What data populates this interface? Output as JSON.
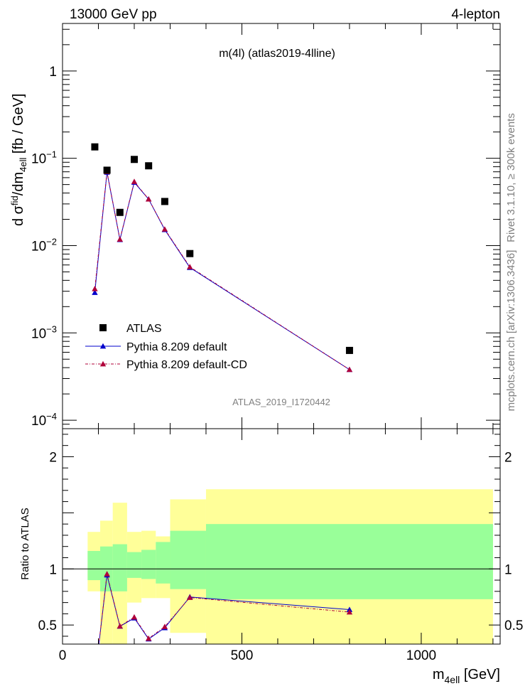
{
  "header": {
    "left_label": "13000 GeV pp",
    "right_label": "4-lepton"
  },
  "side_labels": {
    "rivet": "Rivet 3.1.10, ≥ 300k events",
    "mcplots": "mcplots.cern.ch [arXiv:1306.3436]"
  },
  "chart_data": [
    {
      "type": "scatter",
      "title": "m(4l) (atlas2019-4lline)",
      "watermark": "ATLAS_2019_I1720442",
      "ylabel_main": "d σ",
      "ylabel_sup": "fid",
      "ylabel_mid": "/dm",
      "ylabel_sub": "4ell",
      "ylabel_units": " [fb / GeV]",
      "yscale": "log",
      "xlim": [
        0,
        1220
      ],
      "ylim": [
        8e-05,
        3.5
      ],
      "yticks": [
        0.0001,
        0.001,
        0.01,
        0.1,
        1
      ],
      "ytick_labels": [
        {
          "base": "10",
          "exp": "−4"
        },
        {
          "base": "10",
          "exp": "−3"
        },
        {
          "base": "10",
          "exp": "−2"
        },
        {
          "base": "10",
          "exp": "−1"
        },
        {
          "base": "1",
          "exp": ""
        }
      ],
      "legend": [
        {
          "label": "ATLAS",
          "color": "#000000",
          "marker": "square"
        },
        {
          "label": "Pythia 8.209 default",
          "color": "#0000cc",
          "marker": "triangle"
        },
        {
          "label": "Pythia 8.209 default-CD",
          "color": "#b0003a",
          "marker": "triangle",
          "dashed": true
        }
      ],
      "series": [
        {
          "name": "ATLAS",
          "color": "#000000",
          "x": [
            90,
            124,
            160,
            200,
            240,
            285,
            355,
            800
          ],
          "y": [
            0.135,
            0.073,
            0.024,
            0.097,
            0.082,
            0.032,
            0.0081,
            0.00063
          ]
        },
        {
          "name": "Pythia 8.209 default",
          "color": "#0000cc",
          "x": [
            90,
            124,
            160,
            200,
            240,
            285,
            355,
            800
          ],
          "y": [
            0.0029,
            0.069,
            0.0117,
            0.053,
            0.034,
            0.0152,
            0.0056,
            0.00038
          ]
        },
        {
          "name": "Pythia 8.209 default-CD",
          "color": "#b0003a",
          "x": [
            90,
            124,
            160,
            200,
            240,
            285,
            355,
            800
          ],
          "y": [
            0.0032,
            0.07,
            0.0118,
            0.054,
            0.034,
            0.0154,
            0.0057,
            0.00038
          ]
        }
      ]
    },
    {
      "type": "area",
      "ylabel": "Ratio to ATLAS",
      "xlabel_main": "m",
      "xlabel_sub": "4ell",
      "xlabel_units": " [GeV]",
      "xlim": [
        0,
        1220
      ],
      "ylim": [
        0.33,
        2.25
      ],
      "xticks": [
        0,
        500,
        1000
      ],
      "xtick_labels": [
        "0",
        "500",
        "1000"
      ],
      "yticks": [
        0.5,
        1,
        2
      ],
      "ytick_labels": [
        "0.5",
        "1",
        "2"
      ],
      "bins": [
        {
          "lo": 70,
          "hi": 105,
          "yel": [
            0.8,
            1.33
          ],
          "grn": [
            0.9,
            1.16
          ]
        },
        {
          "lo": 105,
          "hi": 140,
          "yel": [
            0.2,
            1.43
          ],
          "grn": [
            0.8,
            1.2
          ]
        },
        {
          "lo": 140,
          "hi": 180,
          "yel": [
            0.2,
            1.59
          ],
          "grn": [
            0.8,
            1.22
          ]
        },
        {
          "lo": 180,
          "hi": 220,
          "yel": [
            0.7,
            1.33
          ],
          "grn": [
            0.92,
            1.15
          ]
        },
        {
          "lo": 220,
          "hi": 260,
          "yel": [
            0.74,
            1.34
          ],
          "grn": [
            0.91,
            1.17
          ]
        },
        {
          "lo": 260,
          "hi": 300,
          "yel": [
            0.74,
            1.29
          ],
          "grn": [
            0.87,
            1.24
          ]
        },
        {
          "lo": 300,
          "hi": 400,
          "yel": [
            0.43,
            1.62
          ],
          "grn": [
            0.82,
            1.34
          ]
        },
        {
          "lo": 400,
          "hi": 1200,
          "yel": [
            0.1,
            1.71
          ],
          "grn": [
            0.73,
            1.4
          ]
        }
      ],
      "series": [
        {
          "name": "Pythia 8.209 default",
          "color": "#0000cc",
          "x": [
            90,
            124,
            160,
            200,
            240,
            285,
            355,
            800
          ],
          "y": [
            0.02,
            0.945,
            0.488,
            0.562,
            0.375,
            0.475,
            0.75,
            0.637
          ]
        },
        {
          "name": "Pythia 8.209 default-CD",
          "color": "#b0003a",
          "x": [
            90,
            124,
            160,
            200,
            240,
            285,
            355,
            800
          ],
          "y": [
            0.02,
            0.955,
            0.49,
            0.57,
            0.38,
            0.485,
            0.745,
            0.615
          ]
        }
      ]
    }
  ]
}
